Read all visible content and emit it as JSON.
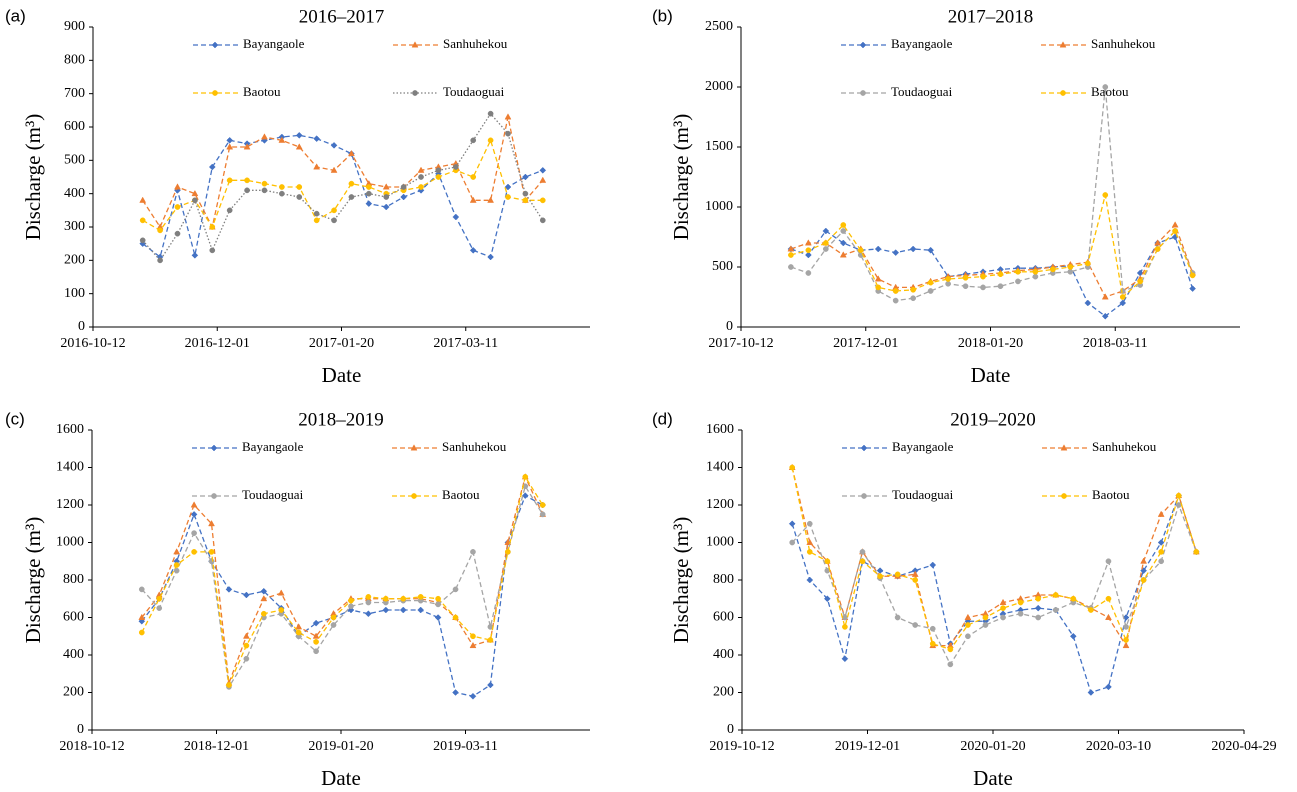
{
  "chart_data": [
    {
      "type": "line",
      "panel": "(a)",
      "title": "2016–2017",
      "xlabel": "Date",
      "ylabel": "Discharge (m³)",
      "x": [
        "2016-11-01",
        "2016-11-08",
        "2016-11-15",
        "2016-11-22",
        "2016-11-29",
        "2016-12-06",
        "2016-12-13",
        "2016-12-20",
        "2016-12-27",
        "2017-01-03",
        "2017-01-10",
        "2017-01-17",
        "2017-01-24",
        "2017-01-31",
        "2017-02-07",
        "2017-02-14",
        "2017-02-21",
        "2017-02-28",
        "2017-03-07",
        "2017-03-14",
        "2017-03-21",
        "2017-03-28",
        "2017-04-04",
        "2017-04-11"
      ],
      "xlim": [
        "2016-10-12",
        "2017-04-30"
      ],
      "xticks": [
        "2016-10-12",
        "2016-12-01",
        "2017-01-20",
        "2017-03-11"
      ],
      "ylim": [
        0,
        900
      ],
      "yticks": [
        0,
        100,
        200,
        300,
        400,
        500,
        600,
        700,
        800,
        900
      ],
      "grid": false,
      "legend": "top",
      "series": [
        {
          "name": "Bayangaole",
          "color": "#4472c4",
          "linestyle": "dashed",
          "marker": "diamond",
          "values": [
            250,
            210,
            410,
            215,
            480,
            560,
            550,
            560,
            570,
            575,
            565,
            545,
            520,
            370,
            360,
            390,
            410,
            460,
            330,
            230,
            210,
            420,
            450,
            470
          ]
        },
        {
          "name": "Sanhuhekou",
          "color": "#ed7d31",
          "linestyle": "dashed",
          "marker": "triangle",
          "values": [
            380,
            300,
            420,
            400,
            300,
            540,
            540,
            570,
            560,
            540,
            480,
            470,
            520,
            430,
            420,
            420,
            470,
            480,
            490,
            380,
            380,
            630,
            380,
            440
          ]
        },
        {
          "name": "Baotou",
          "color": "#ffc000",
          "linestyle": "dashed",
          "marker": "circle",
          "values": [
            320,
            290,
            360,
            380,
            300,
            440,
            440,
            430,
            420,
            420,
            320,
            350,
            430,
            420,
            400,
            410,
            420,
            450,
            470,
            450,
            560,
            390,
            380,
            380
          ]
        },
        {
          "name": "Toudaoguai",
          "color": "#7f7f7f",
          "linestyle": "dotted",
          "marker": "circle",
          "values": [
            260,
            200,
            280,
            380,
            230,
            350,
            410,
            410,
            400,
            390,
            340,
            320,
            390,
            400,
            390,
            420,
            450,
            470,
            480,
            560,
            640,
            580,
            400,
            320
          ]
        }
      ]
    },
    {
      "type": "line",
      "panel": "(b)",
      "title": "2017–2018",
      "xlabel": "Date",
      "ylabel": "Discharge (m³)",
      "x": [
        "2017-11-01",
        "2017-11-08",
        "2017-11-15",
        "2017-11-22",
        "2017-11-29",
        "2017-12-06",
        "2017-12-13",
        "2017-12-20",
        "2017-12-27",
        "2018-01-03",
        "2018-01-10",
        "2018-01-17",
        "2018-01-24",
        "2018-01-31",
        "2018-02-07",
        "2018-02-14",
        "2018-02-21",
        "2018-02-28",
        "2018-03-07",
        "2018-03-14",
        "2018-03-21",
        "2018-03-28",
        "2018-04-04",
        "2018-04-11"
      ],
      "xlim": [
        "2017-10-12",
        "2018-04-30"
      ],
      "xticks": [
        "2017-10-12",
        "2017-12-01",
        "2018-01-20",
        "2018-03-11"
      ],
      "ylim": [
        0,
        2500
      ],
      "yticks": [
        0,
        500,
        1000,
        1500,
        2000,
        2500
      ],
      "grid": false,
      "legend": "top",
      "series": [
        {
          "name": "Bayangaole",
          "color": "#4472c4",
          "linestyle": "dashed",
          "marker": "diamond",
          "values": [
            650,
            600,
            800,
            700,
            640,
            650,
            620,
            650,
            640,
            420,
            440,
            460,
            480,
            490,
            490,
            500,
            510,
            200,
            90,
            200,
            450,
            700,
            750,
            320
          ]
        },
        {
          "name": "Sanhuhekou",
          "color": "#ed7d31",
          "linestyle": "dashed",
          "marker": "triangle",
          "values": [
            650,
            700,
            700,
            600,
            650,
            400,
            330,
            330,
            380,
            420,
            430,
            440,
            450,
            470,
            480,
            500,
            520,
            540,
            250,
            300,
            400,
            700,
            850,
            450
          ]
        },
        {
          "name": "Toudaoguai",
          "color": "#a5a5a5",
          "linestyle": "dashed",
          "marker": "circle",
          "values": [
            500,
            450,
            650,
            800,
            600,
            300,
            220,
            240,
            300,
            360,
            340,
            330,
            340,
            380,
            420,
            450,
            460,
            500,
            2000,
            300,
            350,
            650,
            800,
            450
          ]
        },
        {
          "name": "Baotou",
          "color": "#ffc000",
          "linestyle": "dashed",
          "marker": "circle",
          "values": [
            600,
            640,
            700,
            850,
            640,
            330,
            300,
            310,
            370,
            400,
            410,
            420,
            440,
            460,
            460,
            480,
            500,
            530,
            1100,
            250,
            380,
            650,
            800,
            430
          ]
        }
      ]
    },
    {
      "type": "line",
      "panel": "(c)",
      "title": "2018–2019",
      "xlabel": "Date",
      "ylabel": "Discharge (m³)",
      "x": [
        "2018-11-01",
        "2018-11-08",
        "2018-11-15",
        "2018-11-22",
        "2018-11-29",
        "2018-12-06",
        "2018-12-13",
        "2018-12-20",
        "2018-12-27",
        "2019-01-03",
        "2019-01-10",
        "2019-01-17",
        "2019-01-24",
        "2019-01-31",
        "2019-02-07",
        "2019-02-14",
        "2019-02-21",
        "2019-02-28",
        "2019-03-07",
        "2019-03-14",
        "2019-03-21",
        "2019-03-28",
        "2019-04-04",
        "2019-04-11"
      ],
      "xlim": [
        "2018-10-12",
        "2019-04-30"
      ],
      "xticks": [
        "2018-10-12",
        "2018-12-01",
        "2019-01-20",
        "2019-03-11"
      ],
      "ylim": [
        0,
        1600
      ],
      "yticks": [
        0,
        200,
        400,
        600,
        800,
        1000,
        1200,
        1400,
        1600
      ],
      "grid": false,
      "legend": "top",
      "series": [
        {
          "name": "Bayangaole",
          "color": "#4472c4",
          "linestyle": "dashed",
          "marker": "diamond",
          "values": [
            580,
            700,
            900,
            1150,
            900,
            750,
            720,
            740,
            650,
            500,
            570,
            600,
            640,
            620,
            640,
            640,
            640,
            600,
            200,
            180,
            240,
            1000,
            1250,
            1200
          ]
        },
        {
          "name": "Sanhuhekou",
          "color": "#ed7d31",
          "linestyle": "dashed",
          "marker": "triangle",
          "values": [
            600,
            720,
            950,
            1200,
            1100,
            250,
            500,
            700,
            730,
            550,
            500,
            620,
            700,
            700,
            700,
            700,
            700,
            680,
            600,
            450,
            480,
            1000,
            1350,
            1150
          ]
        },
        {
          "name": "Toudaoguai",
          "color": "#a5a5a5",
          "linestyle": "dashed",
          "marker": "circle",
          "values": [
            750,
            650,
            850,
            1050,
            900,
            230,
            380,
            600,
            620,
            500,
            420,
            560,
            660,
            680,
            680,
            690,
            690,
            670,
            750,
            950,
            550,
            950,
            1300,
            1150
          ]
        },
        {
          "name": "Baotou",
          "color": "#ffc000",
          "linestyle": "dashed",
          "marker": "circle",
          "values": [
            520,
            700,
            880,
            950,
            950,
            240,
            450,
            620,
            640,
            520,
            470,
            600,
            690,
            710,
            700,
            700,
            710,
            700,
            600,
            500,
            480,
            950,
            1350,
            1200
          ]
        }
      ]
    },
    {
      "type": "line",
      "panel": "(d)",
      "title": "2019–2020",
      "xlabel": "Date",
      "ylabel": "Discharge (m³)",
      "x": [
        "2019-11-01",
        "2019-11-08",
        "2019-11-15",
        "2019-11-22",
        "2019-11-29",
        "2019-12-06",
        "2019-12-13",
        "2019-12-20",
        "2019-12-27",
        "2020-01-03",
        "2020-01-10",
        "2020-01-17",
        "2020-01-24",
        "2020-01-31",
        "2020-02-07",
        "2020-02-14",
        "2020-02-21",
        "2020-02-28",
        "2020-03-06",
        "2020-03-13",
        "2020-03-20",
        "2020-03-27",
        "2020-04-03",
        "2020-04-10"
      ],
      "xlim": [
        "2019-10-12",
        "2020-04-29"
      ],
      "xticks": [
        "2019-10-12",
        "2019-12-01",
        "2020-01-20",
        "2020-03-10",
        "2020-04-29"
      ],
      "ylim": [
        0,
        1600
      ],
      "yticks": [
        0,
        200,
        400,
        600,
        800,
        1000,
        1200,
        1400,
        1600
      ],
      "grid": false,
      "legend": "top",
      "series": [
        {
          "name": "Bayangaole",
          "color": "#4472c4",
          "linestyle": "dashed",
          "marker": "diamond",
          "values": [
            1100,
            800,
            700,
            380,
            900,
            850,
            820,
            850,
            880,
            460,
            580,
            580,
            620,
            640,
            650,
            640,
            500,
            200,
            230,
            600,
            850,
            1000,
            1250,
            950
          ]
        },
        {
          "name": "Sanhuhekou",
          "color": "#ed7d31",
          "linestyle": "dashed",
          "marker": "triangle",
          "values": [
            1400,
            1000,
            900,
            600,
            950,
            820,
            820,
            830,
            450,
            450,
            600,
            620,
            680,
            700,
            720,
            720,
            700,
            650,
            600,
            450,
            900,
            1150,
            1250,
            950
          ]
        },
        {
          "name": "Toudaoguai",
          "color": "#a5a5a5",
          "linestyle": "dashed",
          "marker": "circle",
          "values": [
            1000,
            1100,
            850,
            600,
            950,
            810,
            600,
            560,
            540,
            350,
            500,
            560,
            600,
            620,
            600,
            640,
            680,
            650,
            900,
            550,
            800,
            900,
            1200,
            950
          ]
        },
        {
          "name": "Baotou",
          "color": "#ffc000",
          "linestyle": "dashed",
          "marker": "circle",
          "values": [
            1400,
            950,
            900,
            550,
            900,
            820,
            830,
            800,
            460,
            430,
            560,
            600,
            650,
            680,
            700,
            720,
            700,
            640,
            700,
            480,
            800,
            950,
            1250,
            950
          ]
        }
      ]
    }
  ]
}
